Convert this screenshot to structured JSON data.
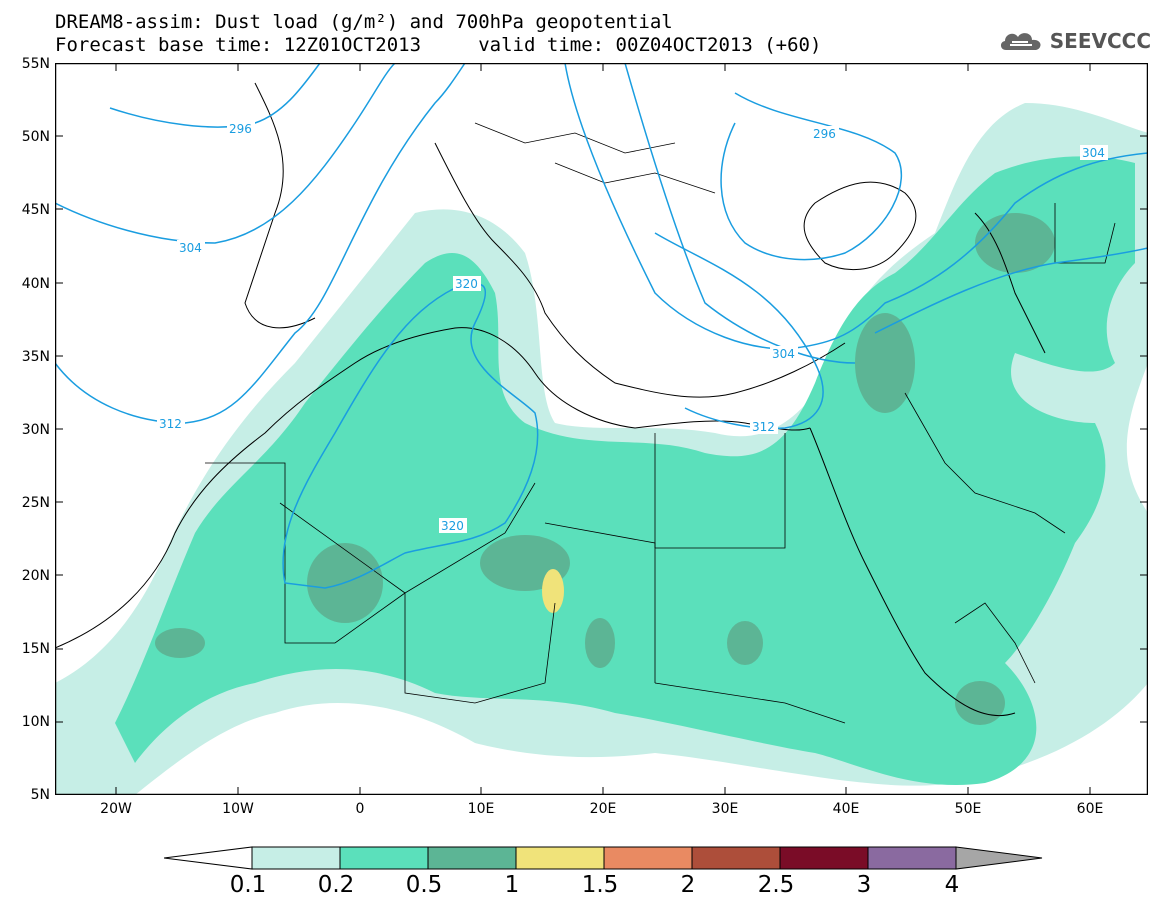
{
  "title": {
    "line1": "DREAM8-assim: Dust load (g/m²) and 700hPa geopotential",
    "line2": "Forecast base time: 12Z01OCT2013     valid time: 00Z04OCT2013 (+60)"
  },
  "logo": {
    "text": "SEEVCCC",
    "icon": "cloud-icon"
  },
  "axes": {
    "lat_labels": [
      "55N",
      "50N",
      "45N",
      "40N",
      "35N",
      "30N",
      "25N",
      "20N",
      "15N",
      "10N",
      "5N"
    ],
    "lon_labels": [
      "20W",
      "10W",
      "0",
      "10E",
      "20E",
      "30E",
      "40E",
      "50E",
      "60E"
    ]
  },
  "contours": {
    "labels": [
      "296",
      "304",
      "312",
      "320",
      "296",
      "304",
      "312",
      "320",
      "304"
    ]
  },
  "colorbar": {
    "ticks": [
      "0.1",
      "0.2",
      "0.5",
      "1",
      "1.5",
      "2",
      "2.5",
      "3",
      "4"
    ],
    "colors": [
      "#ffffff",
      "#c6eee6",
      "#5be0bb",
      "#5cb595",
      "#f0e37a",
      "#e98a62",
      "#ad4e3a",
      "#7a0c27",
      "#8a6aa0",
      "#a6a6a6"
    ]
  },
  "map_colors": {
    "ocean": "#ffffff",
    "dust_01": "#c6eee6",
    "dust_02": "#5be0bb",
    "dust_05": "#5cb595",
    "dust_1": "#f0e37a",
    "contour": "#1a9de0",
    "border": "#000000"
  }
}
